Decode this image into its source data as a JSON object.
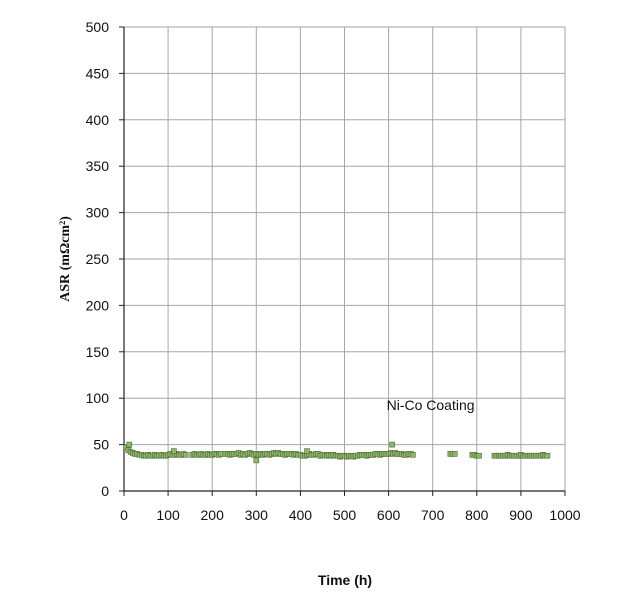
{
  "chart_data": {
    "type": "scatter",
    "title": "",
    "xlabel": "Time (h)",
    "ylabel": "ASR (mΩcm²)",
    "xlim": [
      0,
      1000
    ],
    "ylim": [
      0,
      500
    ],
    "x_ticks": [
      0,
      100,
      200,
      300,
      400,
      500,
      600,
      700,
      800,
      900,
      1000
    ],
    "y_ticks": [
      0,
      50,
      100,
      150,
      200,
      250,
      300,
      350,
      400,
      450,
      500
    ],
    "grid": true,
    "legend": "none",
    "marker_color": "#8fb56a",
    "marker_edge_color": "#4d6b36",
    "annotations": [
      {
        "text": "Ni-Co Coating",
        "x": 600,
        "y": 80
      }
    ],
    "series": [
      {
        "x": [
          5,
          10,
          15,
          20,
          25,
          30,
          35,
          40,
          45,
          50,
          55,
          60,
          65,
          70,
          75,
          80,
          85,
          90,
          95,
          100,
          105,
          110,
          115,
          120,
          125,
          130,
          135,
          140,
          155,
          160,
          165,
          170,
          175,
          180,
          185,
          190,
          195,
          200,
          205,
          210,
          215,
          220,
          230,
          235,
          240,
          245,
          250,
          255,
          260,
          265,
          270,
          275,
          280,
          285,
          290,
          295,
          300,
          305,
          310,
          315,
          320,
          325,
          330,
          335,
          340,
          345,
          350,
          355,
          360,
          365,
          370,
          375,
          380,
          385,
          390,
          395,
          400,
          405,
          410,
          415,
          420,
          425,
          430,
          435,
          440,
          445,
          450,
          455,
          460,
          465,
          470,
          475,
          480,
          485,
          490,
          495,
          500,
          505,
          510,
          515,
          520,
          525,
          530,
          535,
          540,
          545,
          550,
          555,
          560,
          565,
          570,
          575,
          580,
          585,
          590,
          595,
          600,
          605,
          610,
          615,
          620,
          625,
          630,
          635,
          640,
          645,
          650,
          655,
          740,
          745,
          750,
          790,
          795,
          800,
          805,
          840,
          845,
          850,
          855,
          860,
          865,
          870,
          875,
          880,
          885,
          890,
          895,
          900,
          905,
          910,
          915,
          920,
          925,
          930,
          935,
          940,
          945,
          950,
          955,
          960
        ],
        "y": [
          47,
          44,
          42,
          41,
          40,
          40,
          39,
          39,
          38,
          38,
          39,
          38,
          38,
          39,
          38,
          38,
          39,
          38,
          38,
          39,
          40,
          39,
          39,
          40,
          39,
          39,
          40,
          39,
          39,
          40,
          39,
          39,
          40,
          39,
          39,
          40,
          39,
          39,
          40,
          40,
          39,
          40,
          40,
          40,
          39,
          40,
          40,
          40,
          41,
          39,
          40,
          39,
          40,
          41,
          40,
          39,
          40,
          39,
          40,
          39,
          40,
          40,
          39,
          40,
          41,
          40,
          41,
          40,
          40,
          39,
          40,
          40,
          40,
          39,
          40,
          39,
          39,
          38,
          38,
          39,
          40,
          39,
          39,
          40,
          40,
          38,
          39,
          39,
          38,
          39,
          38,
          39,
          38,
          38,
          37,
          38,
          38,
          37,
          38,
          38,
          37,
          38,
          38,
          39,
          39,
          39,
          38,
          39,
          39,
          39,
          40,
          40,
          39,
          40,
          40,
          40,
          40,
          41,
          40,
          41,
          40,
          40,
          40,
          39,
          39,
          40,
          40,
          39,
          40,
          40,
          40,
          39,
          39,
          38,
          38,
          38,
          38,
          38,
          38,
          38,
          38,
          39,
          38,
          38,
          38,
          38,
          38,
          39,
          38,
          38,
          38,
          38,
          38,
          38,
          38,
          38,
          38,
          39,
          38,
          38
        ]
      }
    ],
    "outliers": [
      {
        "x": 12,
        "y": 50
      },
      {
        "x": 300,
        "y": 33
      },
      {
        "x": 608,
        "y": 50
      },
      {
        "x": 113,
        "y": 43
      },
      {
        "x": 415,
        "y": 43
      }
    ]
  }
}
